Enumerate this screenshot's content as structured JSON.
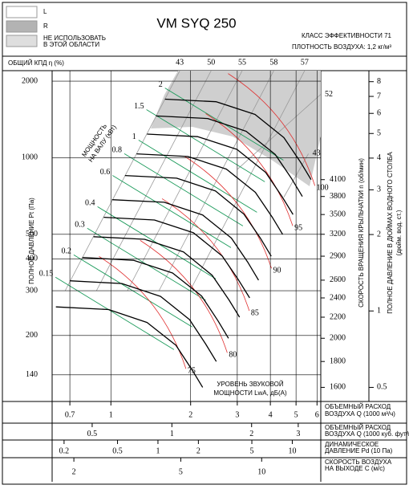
{
  "legend": {
    "items": [
      {
        "label_lines": [
          "L"
        ],
        "color": "#ffffff"
      },
      {
        "label_lines": [
          "R"
        ],
        "color": "#b3b3b3"
      },
      {
        "label_lines": [
          "НЕ ИСПОЛЬЗОВАТЬ",
          "В ЭТОЙ ОБЛАСТИ"
        ],
        "color": "#dedede"
      }
    ]
  },
  "header": {
    "title": "VM SYQ 250",
    "efficiency_class": "КЛАСС ЭФФЕКТИВНОСТИ 71",
    "air_density": "ПЛОТНОСТЬ ВОЗДУХА: 1,2 кг/м³"
  },
  "chart_data": {
    "type": "line",
    "x_scale": "log",
    "y_scale": "log",
    "grid": true,
    "xlabel_lines": [
      "ОБЪЕМНЫЙ РАСХОД",
      "ВОЗДУХА Q (1000 м³/ч)"
    ],
    "ylabel": "ПОЛНОЕ ДАВЛЕНИЕ Pt (Па)",
    "xlim": [
      0.6,
      6.2
    ],
    "xticks": [
      0.7,
      1,
      2,
      3,
      4,
      5,
      6
    ],
    "ylim": [
      110,
      2200
    ],
    "yticks": [
      140,
      200,
      300,
      400,
      500,
      1000,
      2000
    ],
    "y2label_lines": [
      "ПОЛНОЕ ДАВЛЕНИЕ В ДЮЙМАХ ВОДНОГО СТОЛБА",
      "(дюйм. вод. ст.)"
    ],
    "y2lim": [
      0.44,
      8.84
    ],
    "y2ticks": [
      0.5,
      1,
      2,
      3,
      4,
      5,
      6,
      7,
      8
    ],
    "efficiency": {
      "label": "ОБЩИЙ КПД η (%)",
      "color": "#9a9a9a",
      "lines": [
        {
          "value": 43,
          "x": [
            1.82,
            0.672
          ],
          "y": [
            2200,
            300
          ]
        },
        {
          "value": 50,
          "x": [
            2.39,
            0.882
          ],
          "y": [
            2200,
            300
          ]
        },
        {
          "value": 55,
          "x": [
            3.13,
            1.155
          ],
          "y": [
            2200,
            300
          ]
        },
        {
          "value": 58,
          "x": [
            4.12,
            1.52
          ],
          "y": [
            2200,
            300
          ]
        },
        {
          "value": 57,
          "x": [
            5.39,
            1.99
          ],
          "y": [
            2200,
            300
          ]
        },
        {
          "value": 52,
          "x": [
            6.2,
            3.0
          ],
          "y": [
            1775,
            900
          ]
        },
        {
          "value": 43,
          "x": [
            5.57,
            4.5
          ],
          "y": [
            1037,
            700
          ]
        }
      ]
    },
    "speed": {
      "label": "СКОРОСТЬ ВРАЩЕНИЯ КРЫЛЬЧАТКИ n (об/мин)",
      "color": "#000000",
      "series": [
        {
          "rpm": 4100,
          "x": [
            1.6,
            2.5,
            3.5,
            4.5,
            5.2,
            5.7
          ],
          "y": [
            1700,
            1660,
            1480,
            1200,
            960,
            820
          ]
        },
        {
          "rpm": 3800,
          "x": [
            1.48,
            2.32,
            3.24,
            4.17,
            4.82,
            5.28
          ],
          "y": [
            1460,
            1426,
            1271,
            1031,
            825,
            704
          ]
        },
        {
          "rpm": 3500,
          "x": [
            1.37,
            2.13,
            2.99,
            3.84,
            4.44,
            4.87
          ],
          "y": [
            1239,
            1210,
            1079,
            875,
            700,
            598
          ]
        },
        {
          "rpm": 3200,
          "x": [
            1.25,
            1.95,
            2.73,
            3.51,
            4.06,
            4.45
          ],
          "y": [
            1036,
            1011,
            902,
            731,
            585,
            500
          ]
        },
        {
          "rpm": 2900,
          "x": [
            1.13,
            1.77,
            2.48,
            3.18,
            3.68,
            4.03
          ],
          "y": [
            851,
            831,
            740,
            600,
            480,
            410
          ]
        },
        {
          "rpm": 2600,
          "x": [
            1.01,
            1.59,
            2.22,
            2.85,
            3.3,
            3.61
          ],
          "y": [
            684,
            668,
            595,
            483,
            386,
            330
          ]
        },
        {
          "rpm": 2400,
          "x": [
            0.94,
            1.46,
            2.05,
            2.63,
            3.04,
            3.34
          ],
          "y": [
            583,
            569,
            507,
            411,
            329,
            281
          ]
        },
        {
          "rpm": 2200,
          "x": [
            0.86,
            1.34,
            1.88,
            2.41,
            2.79,
            3.06
          ],
          "y": [
            489,
            478,
            426,
            345,
            276,
            236
          ]
        },
        {
          "rpm": 2000,
          "x": [
            0.78,
            1.22,
            1.71,
            2.2,
            2.54,
            2.78
          ],
          "y": [
            405,
            395,
            352,
            286,
            228,
            195
          ]
        },
        {
          "rpm": 1800,
          "x": [
            0.7,
            1.1,
            1.54,
            1.98,
            2.28,
            2.5
          ],
          "y": [
            328,
            320,
            285,
            231,
            185,
            158
          ]
        },
        {
          "rpm": 1600,
          "x": [
            0.62,
            0.98,
            1.37,
            1.76,
            2.03,
            2.22
          ],
          "y": [
            259,
            253,
            225,
            183,
            146,
            125
          ]
        }
      ]
    },
    "power": {
      "label_lines": [
        "МОЩНОСТЬ",
        "НА ВАЛУ (кВт)"
      ],
      "color": "#1a9a5a",
      "lines": [
        {
          "value": 2,
          "x": [
            1.6,
            4.48
          ],
          "y": [
            1880,
            978
          ]
        },
        {
          "value": 1.5,
          "x": [
            1.362,
            3.81
          ],
          "y": [
            1546,
            804
          ]
        },
        {
          "value": 1,
          "x": [
            1.272,
            3.56
          ],
          "y": [
            1173,
            610
          ]
        },
        {
          "value": 0.8,
          "x": [
            1.124,
            3.15
          ],
          "y": [
            1037,
            539
          ]
        },
        {
          "value": 0.6,
          "x": [
            1.014,
            2.84
          ],
          "y": [
            852,
            443
          ]
        },
        {
          "value": 0.4,
          "x": [
            0.89,
            2.49
          ],
          "y": [
            642,
            334
          ]
        },
        {
          "value": 0.3,
          "x": [
            0.814,
            2.28
          ],
          "y": [
            528,
            275
          ]
        },
        {
          "value": 0.2,
          "x": [
            0.724,
            2.03
          ],
          "y": [
            415,
            216
          ]
        },
        {
          "value": 0.15,
          "x": [
            0.618,
            1.73
          ],
          "y": [
            339,
            176
          ]
        }
      ]
    },
    "sound": {
      "label_lines": [
        "УРОВЕНЬ ЗВУКОВОЙ",
        "МОЩНОСТИ LwA, дБ(А)"
      ],
      "color": "#e03030",
      "lines": [
        {
          "value": 100,
          "x": [
            5.89,
            4.79,
            2.77
          ],
          "y": [
            776,
            1491,
            2143
          ]
        },
        {
          "value": 95,
          "x": [
            4.86,
            3.95,
            2.28
          ],
          "y": [
            539,
            1037,
            1491
          ]
        },
        {
          "value": 90,
          "x": [
            4.04,
            3.28,
            1.89
          ],
          "y": [
            367,
            706,
            1015
          ]
        },
        {
          "value": 85,
          "x": [
            3.33,
            2.71,
            1.56
          ],
          "y": [
            250,
            480,
            690
          ]
        },
        {
          "value": 80,
          "x": [
            2.75,
            2.23,
            1.29
          ],
          "y": [
            171,
            329,
            473
          ]
        },
        {
          "value": 75,
          "x": [
            1.92,
            1.56,
            0.902
          ],
          "y": [
            148,
            285,
            409
          ]
        }
      ]
    },
    "secondary_x_axes": [
      {
        "label_lines": [
          "ОБЪЕМНЫЙ РАСХОД",
          "ВОЗДУХА Q (1000 куб. фут/мин)"
        ],
        "lim": [
          0.353,
          3.65
        ],
        "ticks": [
          0.5,
          1,
          2,
          3
        ]
      },
      {
        "label_lines": [
          "ДИНАМИЧЕСКОЕ",
          "ДАВЛЕНИЕ Pd (10 Па)"
        ],
        "lim": [
          0.163,
          16.3
        ],
        "ticks": [
          0.2,
          0.5,
          1,
          2,
          5,
          10
        ]
      },
      {
        "label_lines": [
          "СКОРОСТЬ ВОЗДУХА",
          "НА ВЫХОДЕ C (м/с)"
        ],
        "lim": [
          1.66,
          16.6
        ],
        "ticks": [
          2,
          5,
          10
        ]
      }
    ]
  }
}
